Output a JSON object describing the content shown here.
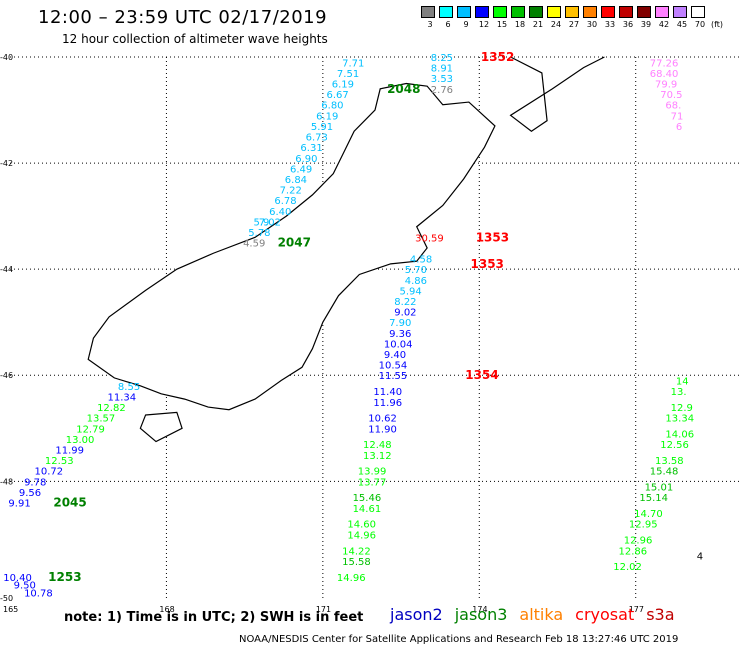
{
  "header": {
    "title": "12:00 – 23:59 UTC 02/17/2019",
    "subtitle": "12 hour collection of altimeter wave heights"
  },
  "legend": {
    "unit": "(ft)",
    "bins": [
      {
        "label": "3",
        "color": "#808080"
      },
      {
        "label": "6",
        "color": "#00ffff"
      },
      {
        "label": "9",
        "color": "#00bfff"
      },
      {
        "label": "12",
        "color": "#0000ff"
      },
      {
        "label": "15",
        "color": "#00ff00"
      },
      {
        "label": "18",
        "color": "#00c000"
      },
      {
        "label": "21",
        "color": "#008000"
      },
      {
        "label": "24",
        "color": "#ffff00"
      },
      {
        "label": "27",
        "color": "#ffc000"
      },
      {
        "label": "30",
        "color": "#ff8000"
      },
      {
        "label": "33",
        "color": "#ff0000"
      },
      {
        "label": "36",
        "color": "#c00000"
      },
      {
        "label": "39",
        "color": "#800000"
      },
      {
        "label": "42",
        "color": "#ff80ff"
      },
      {
        "label": "45",
        "color": "#c080ff"
      },
      {
        "label": "70",
        "color": "#ffffff"
      }
    ]
  },
  "axes": {
    "lat_labels": [
      "-40",
      "-42",
      "-44",
      "-46",
      "-48",
      "-50"
    ],
    "lon_labels": [
      "165",
      "168",
      "171",
      "174",
      "177"
    ]
  },
  "observations": [
    {
      "v": "7.71",
      "c": "#00bfff",
      "lon": 171.6,
      "lat": -40.1
    },
    {
      "v": "7.51",
      "c": "#00bfff",
      "lon": 171.5,
      "lat": -40.3
    },
    {
      "v": "6.19",
      "c": "#00bfff",
      "lon": 171.4,
      "lat": -40.5
    },
    {
      "v": "6.67",
      "c": "#00bfff",
      "lon": 171.3,
      "lat": -40.7
    },
    {
      "v": "6.80",
      "c": "#00bfff",
      "lon": 171.2,
      "lat": -40.9
    },
    {
      "v": "6.19",
      "c": "#00bfff",
      "lon": 171.1,
      "lat": -41.1
    },
    {
      "v": "5.91",
      "c": "#00bfff",
      "lon": 171.0,
      "lat": -41.3
    },
    {
      "v": "6.73",
      "c": "#00bfff",
      "lon": 170.9,
      "lat": -41.5
    },
    {
      "v": "6.31",
      "c": "#00bfff",
      "lon": 170.8,
      "lat": -41.7
    },
    {
      "v": "6.90",
      "c": "#00bfff",
      "lon": 170.7,
      "lat": -41.9
    },
    {
      "v": "6.49",
      "c": "#00bfff",
      "lon": 170.6,
      "lat": -42.1
    },
    {
      "v": "6.84",
      "c": "#00bfff",
      "lon": 170.5,
      "lat": -42.3
    },
    {
      "v": "7.22",
      "c": "#00bfff",
      "lon": 170.4,
      "lat": -42.5
    },
    {
      "v": "6.78",
      "c": "#00bfff",
      "lon": 170.3,
      "lat": -42.7
    },
    {
      "v": "6.40",
      "c": "#00bfff",
      "lon": 170.2,
      "lat": -42.9
    },
    {
      "v": "7.02",
      "c": "#00bfff",
      "lon": 170.0,
      "lat": -43.1
    },
    {
      "v": "5.78",
      "c": "#00bfff",
      "lon": 169.8,
      "lat": -43.3
    },
    {
      "v": "5.9",
      "c": "#00bfff",
      "lon": 169.9,
      "lat": -43.1
    },
    {
      "v": "4.59",
      "c": "#808080",
      "lon": 169.7,
      "lat": -43.5
    },
    {
      "v": "8.25",
      "c": "#00bfff",
      "lon": 173.3,
      "lat": -40.0
    },
    {
      "v": "8.91",
      "c": "#00bfff",
      "lon": 173.3,
      "lat": -40.2
    },
    {
      "v": "3.53",
      "c": "#00bfff",
      "lon": 173.3,
      "lat": -40.4
    },
    {
      "v": "2.76",
      "c": "#808080",
      "lon": 173.3,
      "lat": -40.6
    },
    {
      "v": "30.59",
      "c": "#ff0000",
      "lon": 173.0,
      "lat": -43.4
    },
    {
      "v": "4.58",
      "c": "#00bfff",
      "lon": 172.9,
      "lat": -43.8
    },
    {
      "v": "5.70",
      "c": "#00bfff",
      "lon": 172.8,
      "lat": -44.0
    },
    {
      "v": "4.86",
      "c": "#00bfff",
      "lon": 172.8,
      "lat": -44.2
    },
    {
      "v": "5.94",
      "c": "#00bfff",
      "lon": 172.7,
      "lat": -44.4
    },
    {
      "v": "8.22",
      "c": "#00bfff",
      "lon": 172.6,
      "lat": -44.6
    },
    {
      "v": "9.02",
      "c": "#0000ff",
      "lon": 172.6,
      "lat": -44.8
    },
    {
      "v": "7.90",
      "c": "#00bfff",
      "lon": 172.5,
      "lat": -45.0
    },
    {
      "v": "9.36",
      "c": "#0000ff",
      "lon": 172.5,
      "lat": -45.2
    },
    {
      "v": "10.04",
      "c": "#0000ff",
      "lon": 172.4,
      "lat": -45.4
    },
    {
      "v": "9.40",
      "c": "#0000ff",
      "lon": 172.4,
      "lat": -45.6
    },
    {
      "v": "10.54",
      "c": "#0000ff",
      "lon": 172.3,
      "lat": -45.8
    },
    {
      "v": "11.55",
      "c": "#0000ff",
      "lon": 172.3,
      "lat": -46.0
    },
    {
      "v": "11.40",
      "c": "#0000ff",
      "lon": 172.2,
      "lat": -46.3
    },
    {
      "v": "11.96",
      "c": "#0000ff",
      "lon": 172.2,
      "lat": -46.5
    },
    {
      "v": "10.62",
      "c": "#0000ff",
      "lon": 172.1,
      "lat": -46.8
    },
    {
      "v": "11.90",
      "c": "#0000ff",
      "lon": 172.1,
      "lat": -47.0
    },
    {
      "v": "12.48",
      "c": "#00ff00",
      "lon": 172.0,
      "lat": -47.3
    },
    {
      "v": "13.12",
      "c": "#00ff00",
      "lon": 172.0,
      "lat": -47.5
    },
    {
      "v": "13.99",
      "c": "#00ff00",
      "lon": 171.9,
      "lat": -47.8
    },
    {
      "v": "13.77",
      "c": "#00ff00",
      "lon": 171.9,
      "lat": -48.0
    },
    {
      "v": "15.46",
      "c": "#00c000",
      "lon": 171.8,
      "lat": -48.3
    },
    {
      "v": "14.61",
      "c": "#00ff00",
      "lon": 171.8,
      "lat": -48.5
    },
    {
      "v": "14.60",
      "c": "#00ff00",
      "lon": 171.7,
      "lat": -48.8
    },
    {
      "v": "14.96",
      "c": "#00ff00",
      "lon": 171.7,
      "lat": -49.0
    },
    {
      "v": "14.22",
      "c": "#00ff00",
      "lon": 171.6,
      "lat": -49.3
    },
    {
      "v": "15.58",
      "c": "#00c000",
      "lon": 171.6,
      "lat": -49.5
    },
    {
      "v": "14.96",
      "c": "#00ff00",
      "lon": 171.5,
      "lat": -49.8
    },
    {
      "v": "8.55",
      "c": "#00bfff",
      "lon": 167.3,
      "lat": -46.2
    },
    {
      "v": "11.34",
      "c": "#0000ff",
      "lon": 167.1,
      "lat": -46.4
    },
    {
      "v": "12.82",
      "c": "#00ff00",
      "lon": 166.9,
      "lat": -46.6
    },
    {
      "v": "13.57",
      "c": "#00ff00",
      "lon": 166.7,
      "lat": -46.8
    },
    {
      "v": "12.79",
      "c": "#00ff00",
      "lon": 166.5,
      "lat": -47.0
    },
    {
      "v": "13.00",
      "c": "#00ff00",
      "lon": 166.3,
      "lat": -47.2
    },
    {
      "v": "11.99",
      "c": "#0000ff",
      "lon": 166.1,
      "lat": -47.4
    },
    {
      "v": "12.53",
      "c": "#00ff00",
      "lon": 165.9,
      "lat": -47.6
    },
    {
      "v": "10.72",
      "c": "#0000ff",
      "lon": 165.7,
      "lat": -47.8
    },
    {
      "v": "9.78",
      "c": "#0000ff",
      "lon": 165.5,
      "lat": -48.0
    },
    {
      "v": "9.56",
      "c": "#0000ff",
      "lon": 165.4,
      "lat": -48.2
    },
    {
      "v": "9.91",
      "c": "#0000ff",
      "lon": 165.2,
      "lat": -48.4
    },
    {
      "v": "10.40",
      "c": "#0000ff",
      "lon": 165.1,
      "lat": -49.8
    },
    {
      "v": "9.50",
      "c": "#0000ff",
      "lon": 165.3,
      "lat": -49.95
    },
    {
      "v": "10.78",
      "c": "#0000ff",
      "lon": 165.5,
      "lat": -50.1
    },
    {
      "v": "77.26",
      "c": "#ff80ff",
      "lon": 177.5,
      "lat": -40.1
    },
    {
      "v": "68.40",
      "c": "#ff80ff",
      "lon": 177.5,
      "lat": -40.3
    },
    {
      "v": "79.9",
      "c": "#ff80ff",
      "lon": 177.6,
      "lat": -40.5
    },
    {
      "v": "70.5",
      "c": "#ff80ff",
      "lon": 177.7,
      "lat": -40.7
    },
    {
      "v": "68.",
      "c": "#ff80ff",
      "lon": 177.8,
      "lat": -40.9
    },
    {
      "v": "71",
      "c": "#ff80ff",
      "lon": 177.9,
      "lat": -41.1
    },
    {
      "v": "6",
      "c": "#ff80ff",
      "lon": 178.0,
      "lat": -41.3
    },
    {
      "v": "14",
      "c": "#00ff00",
      "lon": 178.0,
      "lat": -46.1
    },
    {
      "v": "13.",
      "c": "#00ff00",
      "lon": 177.9,
      "lat": -46.3
    },
    {
      "v": "12.9",
      "c": "#00ff00",
      "lon": 177.9,
      "lat": -46.6
    },
    {
      "v": "13.34",
      "c": "#00ff00",
      "lon": 177.8,
      "lat": -46.8
    },
    {
      "v": "14.06",
      "c": "#00ff00",
      "lon": 177.8,
      "lat": -47.1
    },
    {
      "v": "12.56",
      "c": "#00ff00",
      "lon": 177.7,
      "lat": -47.3
    },
    {
      "v": "13.58",
      "c": "#00ff00",
      "lon": 177.6,
      "lat": -47.6
    },
    {
      "v": "15.48",
      "c": "#00c000",
      "lon": 177.5,
      "lat": -47.8
    },
    {
      "v": "15.01",
      "c": "#00c000",
      "lon": 177.4,
      "lat": -48.1
    },
    {
      "v": "15.14",
      "c": "#00c000",
      "lon": 177.3,
      "lat": -48.3
    },
    {
      "v": "14.70",
      "c": "#00ff00",
      "lon": 177.2,
      "lat": -48.6
    },
    {
      "v": "12.95",
      "c": "#00ff00",
      "lon": 177.1,
      "lat": -48.8
    },
    {
      "v": "12.96",
      "c": "#00ff00",
      "lon": 177.0,
      "lat": -49.1
    },
    {
      "v": "12.86",
      "c": "#00ff00",
      "lon": 176.9,
      "lat": -49.3
    },
    {
      "v": "12.02",
      "c": "#00ff00",
      "lon": 176.8,
      "lat": -49.6
    },
    {
      "v": "4",
      "c": "#000000",
      "lon": 178.4,
      "lat": -49.4
    }
  ],
  "pass_labels": [
    {
      "v": "1352",
      "c": "#ff0000",
      "lon": 174.3,
      "lat": -40.0
    },
    {
      "v": "2048",
      "c": "#008000",
      "lon": 172.5,
      "lat": -40.6
    },
    {
      "v": "2047",
      "c": "#008000",
      "lon": 170.4,
      "lat": -43.5
    },
    {
      "v": "1353",
      "c": "#ff0000",
      "lon": 174.2,
      "lat": -43.4
    },
    {
      "v": "1353",
      "c": "#ff0000",
      "lon": 174.1,
      "lat": -43.9
    },
    {
      "v": "1354",
      "c": "#ff0000",
      "lon": 174.0,
      "lat": -46.0
    },
    {
      "v": "2045",
      "c": "#008000",
      "lon": 166.1,
      "lat": -48.4
    },
    {
      "v": "1253",
      "c": "#008000",
      "lon": 166.0,
      "lat": -49.8
    }
  ],
  "footer": {
    "note": "note: 1) Time is in UTC; 2) SWH is in feet",
    "satellites": [
      {
        "name": "jason2",
        "color": "#0000c0"
      },
      {
        "name": "jason3",
        "color": "#008000"
      },
      {
        "name": "altika",
        "color": "#ff8000"
      },
      {
        "name": "cryosat",
        "color": "#ff0000"
      },
      {
        "name": "s3a",
        "color": "#c00000"
      }
    ],
    "credit": "NOAA/NESDIS Center for Satellite Applications and Research    Feb 18 13:27:46 UTC 2019"
  }
}
